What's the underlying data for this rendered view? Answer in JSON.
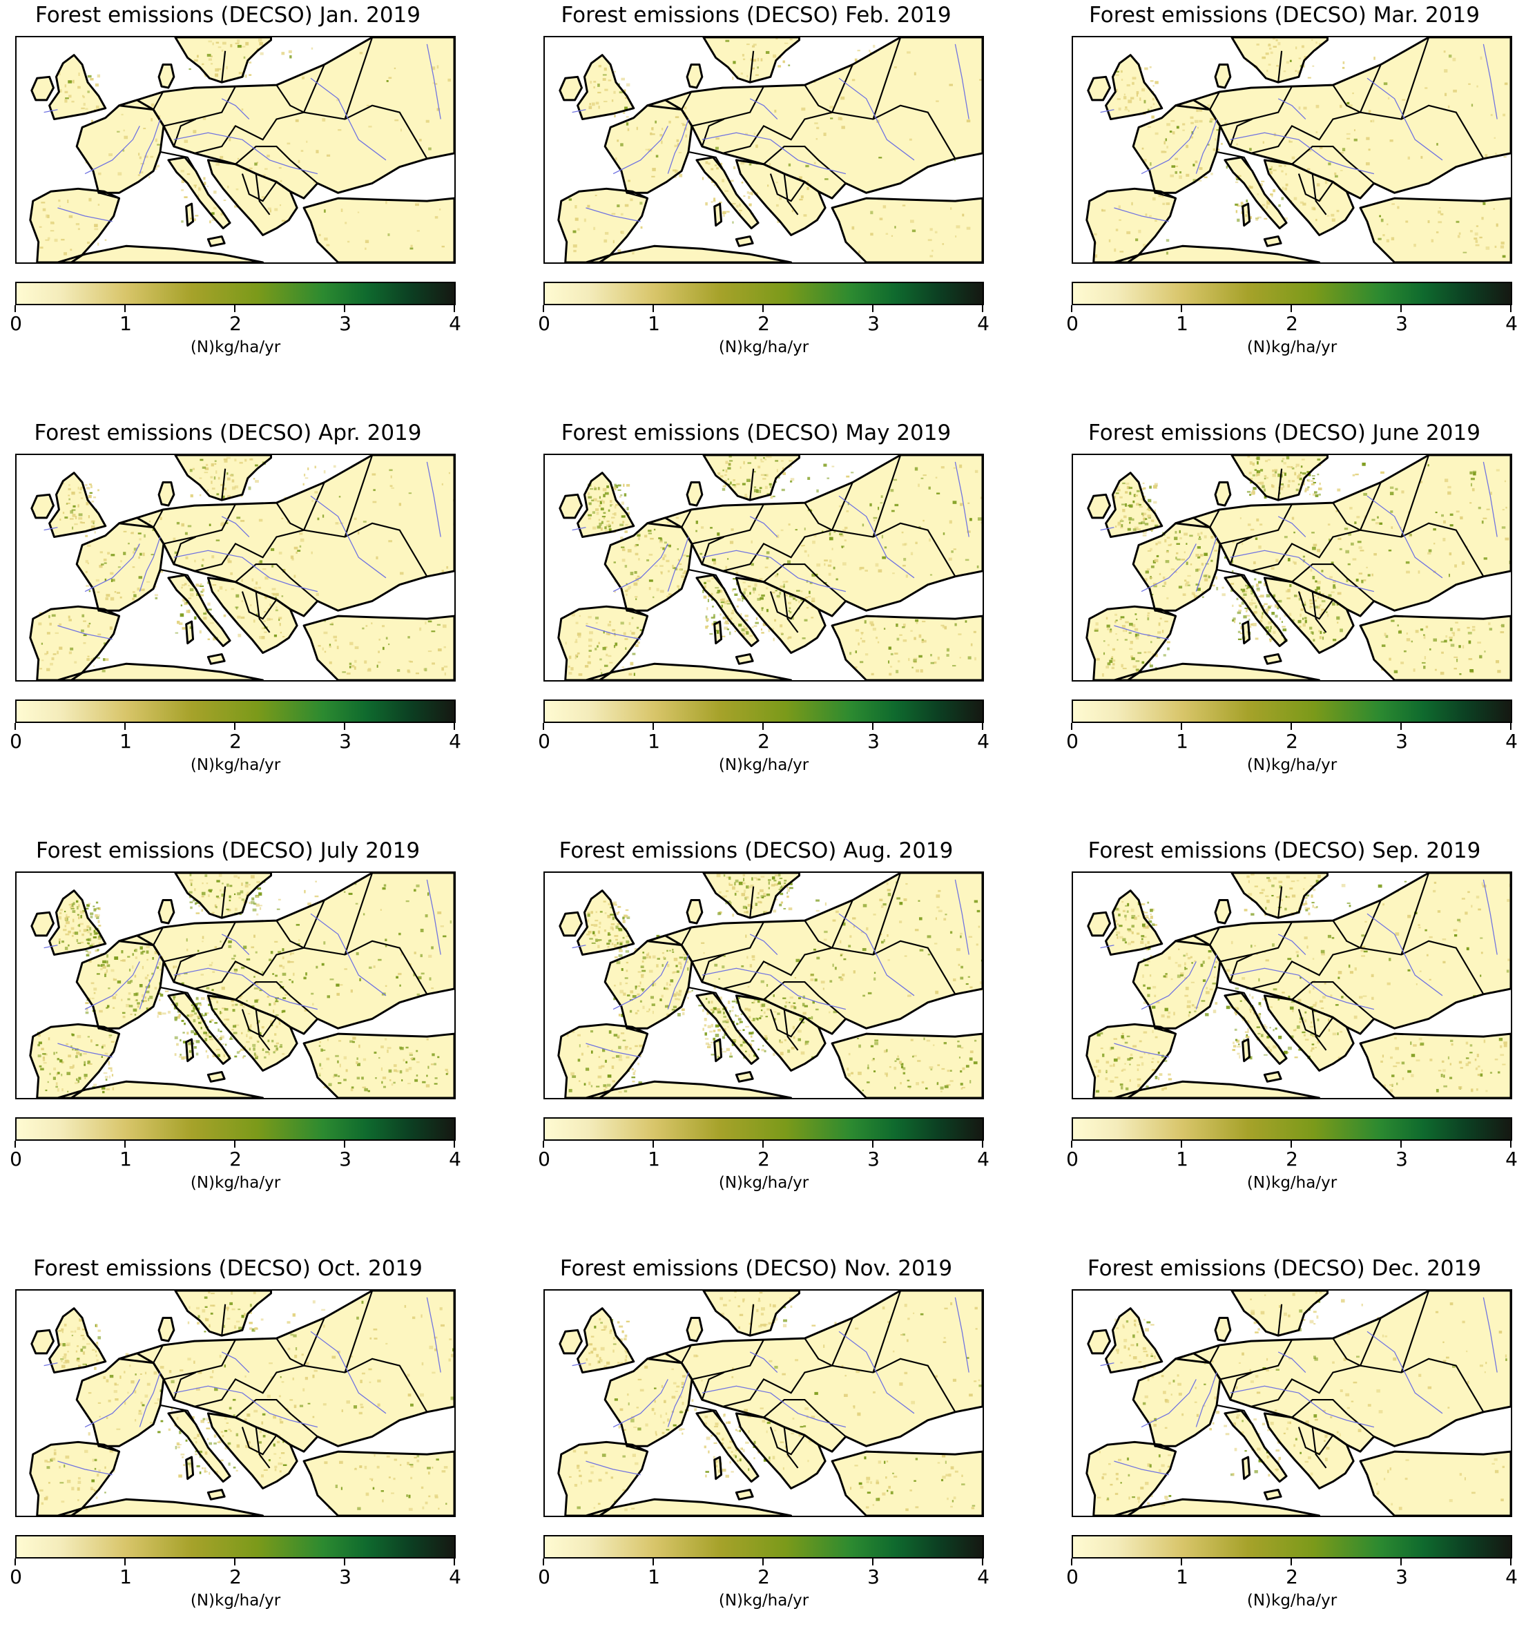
{
  "figure": {
    "panels": [
      {
        "title": "Forest emissions (DECSO) Jan. 2019",
        "level": 0.15
      },
      {
        "title": "Forest emissions (DECSO) Feb. 2019",
        "level": 0.18
      },
      {
        "title": "Forest emissions (DECSO) Mar. 2019",
        "level": 0.28
      },
      {
        "title": "Forest emissions (DECSO) Apr. 2019",
        "level": 0.45
      },
      {
        "title": "Forest emissions (DECSO) May  2019",
        "level": 0.75
      },
      {
        "title": "Forest emissions (DECSO) June 2019",
        "level": 0.85
      },
      {
        "title": "Forest emissions (DECSO) July 2019",
        "level": 0.95
      },
      {
        "title": "Forest emissions (DECSO) Aug. 2019",
        "level": 0.82
      },
      {
        "title": "Forest emissions (DECSO) Sep. 2019",
        "level": 0.6
      },
      {
        "title": "Forest emissions (DECSO) Oct. 2019",
        "level": 0.42
      },
      {
        "title": "Forest emissions (DECSO) Nov. 2019",
        "level": 0.3
      },
      {
        "title": "Forest emissions (DECSO) Dec. 2019",
        "level": 0.2
      }
    ],
    "colorbar": {
      "label": "(N)kg/ha/yr",
      "min": 0,
      "max": 4,
      "ticks": [
        "0",
        "1",
        "2",
        "3",
        "4"
      ],
      "colormap": [
        "#fffbd2",
        "#d8c56a",
        "#a6a22a",
        "#7b9a1a",
        "#2c8a30",
        "#0f6a2e",
        "#151812"
      ]
    },
    "map_colors": {
      "land_light": "#fdf6c0",
      "land_mid": "#e2d27e",
      "forest_green": "#7f9d1f",
      "border": "#000000",
      "river": "#6f72e0",
      "sea": "#ffffff"
    }
  }
}
